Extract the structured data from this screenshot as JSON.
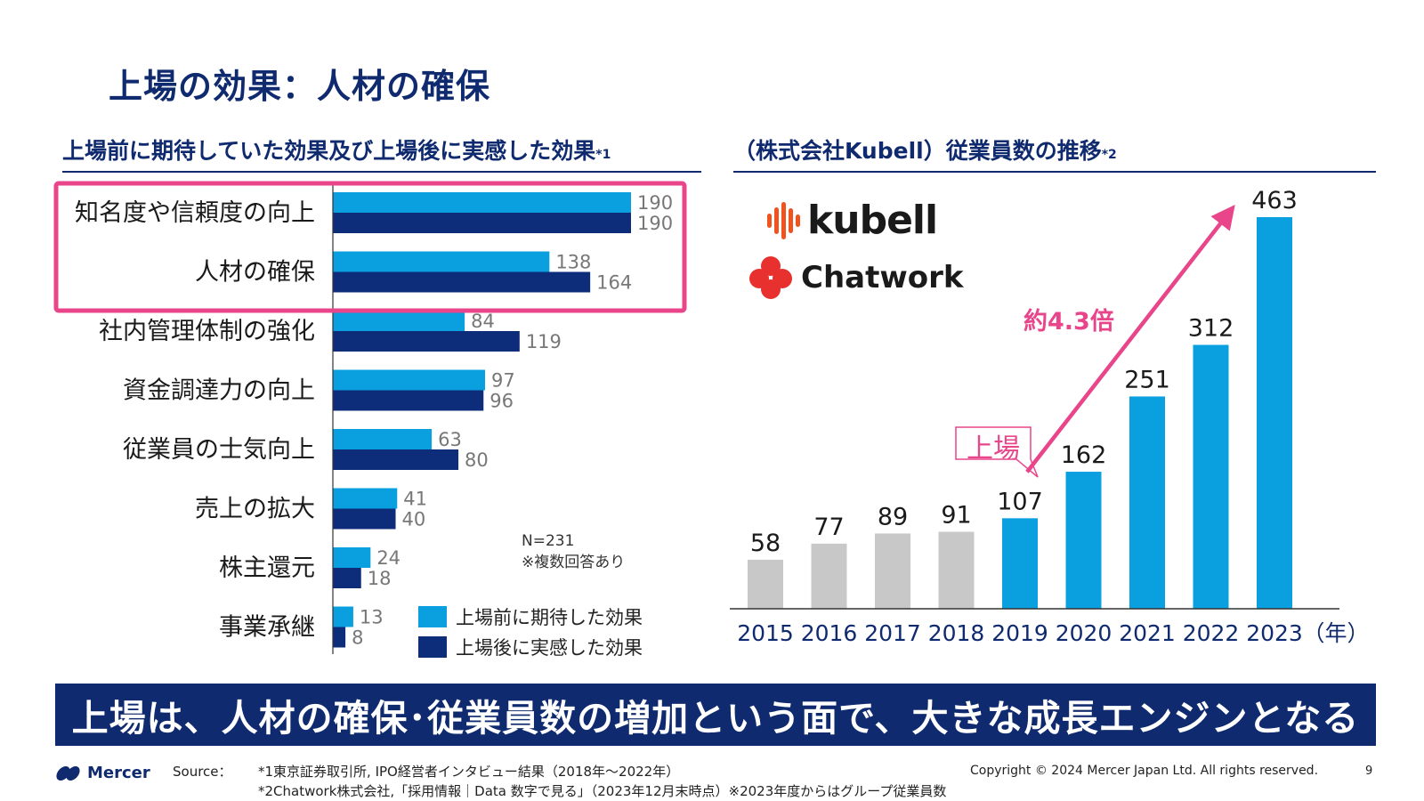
{
  "title": "上場の効果：人材の確保",
  "left": {
    "header": "上場前に期待していた効果及び上場後に実感した効果",
    "header_note": "*1",
    "note_lines": [
      "N=231",
      "※複数回答あり"
    ],
    "highlight_color": "#e8458b"
  },
  "right": {
    "header": "（株式会社Kubell）従業員数の推移",
    "header_note": "*2",
    "kubell_logo": "kubell",
    "chatwork_logo": "Chatwork",
    "callout_label": "上場",
    "growth_label": "約4.3倍",
    "axis_unit": "（年）"
  },
  "banner": "上場は、人材の確保･従業員数の増加という面で、大きな成長エンジンとなる",
  "footer": {
    "logo": "Mercer",
    "source_label": "Source：",
    "sources": [
      "*1東京証券取引所, IPO経営者インタビュー結果（2018年～2022年）",
      "*2Chatwork株式会社,「採用情報｜Data 数字で見る」（2023年12月末時点）※2023年度からはグループ従業員数"
    ],
    "copyright": "Copyright © 2024 Mercer Japan Ltd. All rights reserved.",
    "page_number": "9"
  },
  "colors": {
    "navy": "#0f2a6e",
    "light_blue": "#0aa0e0",
    "dark_blue": "#0d2d7a",
    "bar_blue": "#0aa0e0",
    "bar_gray": "#c8c8c8",
    "pink": "#e8458b",
    "kubell_orange": "#f0541e"
  },
  "chart_data": [
    {
      "type": "bar",
      "orientation": "horizontal",
      "categories": [
        "知名度や信頼度の向上",
        "人材の確保",
        "社内管理体制の強化",
        "資金調達力の向上",
        "従業員の士気向上",
        "売上の拡大",
        "株主還元",
        "事業承継"
      ],
      "series": [
        {
          "name": "上場前に期待した効果",
          "values": [
            190,
            138,
            84,
            97,
            63,
            41,
            24,
            13
          ],
          "color": "#0aa0e0"
        },
        {
          "name": "上場後に実感した効果",
          "values": [
            190,
            164,
            119,
            96,
            80,
            40,
            18,
            8
          ],
          "color": "#0d2d7a"
        }
      ],
      "xlim": [
        0,
        190
      ],
      "highlighted_categories": [
        "知名度や信頼度の向上",
        "人材の確保"
      ],
      "legend": "bottom-right"
    },
    {
      "type": "bar",
      "categories": [
        "2015",
        "2016",
        "2017",
        "2018",
        "2019",
        "2020",
        "2021",
        "2022",
        "2023"
      ],
      "values": [
        58,
        77,
        89,
        91,
        107,
        162,
        251,
        312,
        463
      ],
      "ylim": [
        0,
        463
      ],
      "colors_by_category": [
        "#c8c8c8",
        "#c8c8c8",
        "#c8c8c8",
        "#c8c8c8",
        "#0aa0e0",
        "#0aa0e0",
        "#0aa0e0",
        "#0aa0e0",
        "#0aa0e0"
      ],
      "annotations": [
        {
          "text": "上場",
          "category": "2019"
        },
        {
          "text": "約4.3倍",
          "from": "2019",
          "to": "2023"
        }
      ]
    }
  ]
}
